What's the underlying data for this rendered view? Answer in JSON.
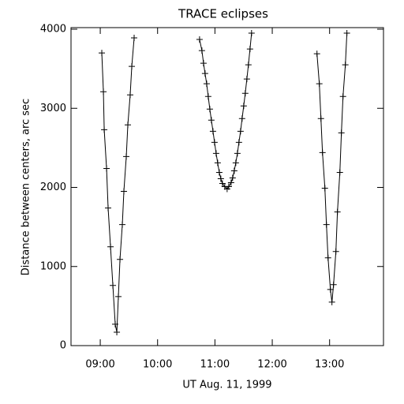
{
  "chart_data": {
    "type": "line",
    "title": "TRACE eclipses",
    "x_label": "UT Aug. 11, 1999",
    "y_label": "Distance between centers, arc sec",
    "x": [
      9.027,
      9.055,
      9.069,
      9.11,
      9.137,
      9.179,
      9.22,
      9.261,
      9.289,
      9.316,
      9.344,
      9.385,
      9.412,
      9.454,
      9.481,
      9.522,
      9.55,
      9.591,
      null,
      10.732,
      10.773,
      10.801,
      10.828,
      10.856,
      10.883,
      10.911,
      10.938,
      10.966,
      10.993,
      11.021,
      11.048,
      11.076,
      11.103,
      11.131,
      11.172,
      11.213,
      11.241,
      11.282,
      11.309,
      11.337,
      11.364,
      11.392,
      11.419,
      11.447,
      11.474,
      11.502,
      11.529,
      11.557,
      11.584,
      11.612,
      11.639,
      null,
      12.78,
      12.821,
      12.849,
      12.876,
      12.918,
      12.945,
      12.973,
      13.014,
      13.041,
      13.069,
      13.11,
      13.137,
      13.179,
      13.206,
      13.234,
      13.275,
      13.302
    ],
    "series": [
      {
        "color": "#000000",
        "values": [
          3700,
          3210,
          2730,
          2240,
          1740,
          1250,
          760,
          270,
          170,
          620,
          1090,
          1530,
          1950,
          2390,
          2790,
          3170,
          3530,
          3890,
          null,
          3870,
          3730,
          3570,
          3440,
          3310,
          3150,
          2990,
          2850,
          2710,
          2570,
          2430,
          2310,
          2190,
          2110,
          2050,
          2010,
          1980,
          2010,
          2060,
          2120,
          2210,
          2310,
          2430,
          2570,
          2710,
          2870,
          3030,
          3190,
          3370,
          3550,
          3750,
          3950,
          null,
          3690,
          3310,
          2870,
          2440,
          1990,
          1530,
          1110,
          710,
          550,
          770,
          1190,
          1690,
          2190,
          2690,
          3150,
          3550,
          3950
        ]
      }
    ],
    "xlim": [
      8.49,
      13.94
    ],
    "xticks": [
      {
        "value": 9,
        "label": "09:00"
      },
      {
        "value": 10,
        "label": "10:00"
      },
      {
        "value": 11,
        "label": "11:00"
      },
      {
        "value": 12,
        "label": "12:00"
      },
      {
        "value": 13,
        "label": "13:00"
      }
    ],
    "ylim": [
      0,
      4020
    ],
    "yticks": [
      0,
      1000,
      2000,
      3000,
      4000
    ],
    "grid": false
  }
}
